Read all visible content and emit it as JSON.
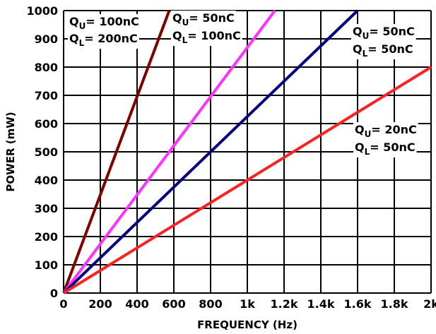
{
  "chart_data": {
    "type": "line",
    "title": "",
    "xlabel": "FREQUENCY (Hz)",
    "ylabel": "POWER (mW)",
    "xlim": [
      0,
      2000
    ],
    "ylim": [
      0,
      1000
    ],
    "grid": true,
    "x_ticks": [
      0,
      200,
      400,
      600,
      800,
      1000,
      1200,
      1400,
      1600,
      1800,
      2000
    ],
    "x_tick_labels": [
      "0",
      "200",
      "400",
      "600",
      "800",
      "1k",
      "1.2k",
      "1.4k",
      "1.6k",
      "1.8k",
      "2k"
    ],
    "y_ticks": [
      0,
      100,
      200,
      300,
      400,
      500,
      600,
      700,
      800,
      900,
      1000
    ],
    "y_tick_labels": [
      "0",
      "100",
      "200",
      "300",
      "400",
      "500",
      "600",
      "700",
      "800",
      "900",
      "1000"
    ],
    "series": [
      {
        "color": "#800000",
        "x": [
          0,
          575
        ],
        "y": [
          0,
          1000
        ],
        "label_lines": [
          {
            "q": "Q",
            "sub": "U",
            "val": "= 100nC"
          },
          {
            "q": "Q",
            "sub": "L",
            "val": "= 200nC"
          }
        ]
      },
      {
        "color": "#ff33ff",
        "x": [
          0,
          1150
        ],
        "y": [
          0,
          1000
        ],
        "label_lines": [
          {
            "q": "Q",
            "sub": "U",
            "val": "= 50nC"
          },
          {
            "q": "Q",
            "sub": "L",
            "val": "= 100nC"
          }
        ]
      },
      {
        "color": "#000080",
        "x": [
          0,
          1600
        ],
        "y": [
          0,
          1000
        ],
        "label_lines": [
          {
            "q": "Q",
            "sub": "U",
            "val": "= 50nC"
          },
          {
            "q": "Q",
            "sub": "L",
            "val": "= 50nC"
          }
        ]
      },
      {
        "color": "#ff2222",
        "x": [
          0,
          2000
        ],
        "y": [
          0,
          800
        ],
        "label_lines": [
          {
            "q": "Q",
            "sub": "U",
            "val": "= 20nC"
          },
          {
            "q": "Q",
            "sub": "L",
            "val": "= 50nC"
          }
        ]
      }
    ]
  }
}
